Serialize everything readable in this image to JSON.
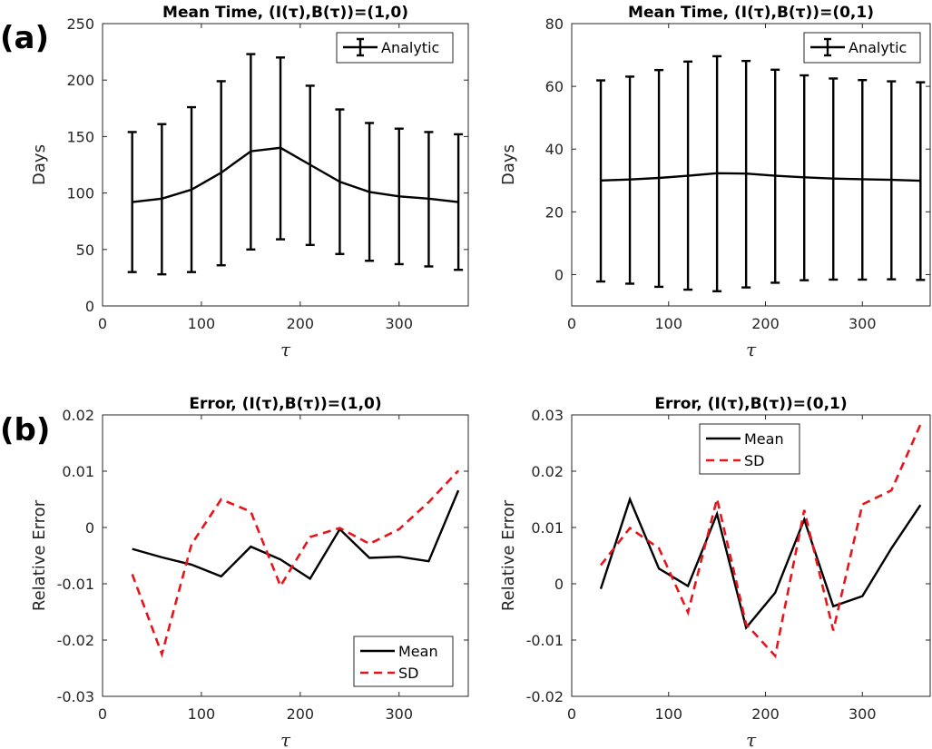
{
  "panel_labels": [
    "(a)",
    "(b)"
  ],
  "chart_data": [
    {
      "type": "line",
      "title": "Mean Time, (I(τ),B(τ))=(1,0)",
      "xlabel": "τ",
      "ylabel": "Days",
      "xlim": [
        0,
        370
      ],
      "ylim": [
        0,
        250
      ],
      "xticks": [
        0,
        100,
        200,
        300
      ],
      "yticks": [
        0,
        50,
        100,
        150,
        200,
        250
      ],
      "yticklabels": [
        "0",
        "50",
        "100",
        "150",
        "200",
        "250"
      ],
      "legend_position": "top-right",
      "series": [
        {
          "name": "Analytic",
          "style": "errorbar",
          "color": "#000000",
          "x": [
            30,
            60,
            90,
            120,
            150,
            180,
            210,
            240,
            270,
            300,
            330,
            360
          ],
          "y": [
            92,
            95,
            103,
            118,
            137,
            140,
            125,
            110,
            101,
            97,
            95,
            92
          ],
          "lower": [
            30,
            28,
            30,
            36,
            50,
            59,
            54,
            46,
            40,
            37,
            35,
            32
          ],
          "upper": [
            154,
            161,
            176,
            199,
            223,
            220,
            195,
            174,
            162,
            157,
            154,
            152
          ]
        }
      ]
    },
    {
      "type": "line",
      "title": "Mean Time, (I(τ),B(τ))=(0,1)",
      "xlabel": "τ",
      "ylabel": "Days",
      "xlim": [
        0,
        370
      ],
      "ylim": [
        -10,
        80
      ],
      "xticks": [
        0,
        100,
        200,
        300
      ],
      "yticks": [
        0,
        20,
        40,
        60,
        80
      ],
      "yticklabels": [
        "0",
        "20",
        "40",
        "60",
        "80"
      ],
      "legend_position": "top-right",
      "series": [
        {
          "name": "Analytic",
          "style": "errorbar",
          "color": "#000000",
          "x": [
            30,
            60,
            90,
            120,
            150,
            180,
            210,
            240,
            270,
            300,
            330,
            360
          ],
          "y": [
            30,
            30.3,
            30.8,
            31.5,
            32.3,
            32.2,
            31.5,
            31,
            30.6,
            30.4,
            30.2,
            29.9
          ],
          "lower": [
            -2.2,
            -2.9,
            -3.9,
            -4.8,
            -5.3,
            -4.1,
            -2.6,
            -1.8,
            -1.6,
            -1.6,
            -1.5,
            -1.7
          ],
          "upper": [
            61.9,
            63.1,
            65.2,
            67.9,
            69.6,
            68.1,
            65.3,
            63.5,
            62.5,
            62,
            61.6,
            61.3
          ]
        }
      ]
    },
    {
      "type": "line",
      "title": "Error, (I(τ),B(τ))=(1,0)",
      "xlabel": "τ",
      "ylabel": "Relative Error",
      "xlim": [
        0,
        370
      ],
      "ylim": [
        -0.03,
        0.02
      ],
      "xticks": [
        0,
        100,
        200,
        300
      ],
      "yticks": [
        -0.03,
        -0.02,
        -0.01,
        0,
        0.01,
        0.02
      ],
      "yticklabels": [
        "-0.03",
        "-0.02",
        "-0.01",
        "0",
        "0.01",
        "0.02"
      ],
      "legend_position": "bottom-right",
      "series": [
        {
          "name": "Mean",
          "style": "solid",
          "color": "#000000",
          "x": [
            30,
            60,
            90,
            120,
            150,
            180,
            210,
            240,
            270,
            300,
            330,
            360
          ],
          "y": [
            -0.0038,
            -0.0053,
            -0.0066,
            -0.0087,
            -0.0034,
            -0.0057,
            -0.0091,
            -0.0003,
            -0.0054,
            -0.0052,
            -0.006,
            0.0066
          ]
        },
        {
          "name": "SD",
          "style": "dashed",
          "color": "#e8141b",
          "x": [
            30,
            60,
            90,
            120,
            150,
            180,
            210,
            240,
            270,
            300,
            330,
            360
          ],
          "y": [
            -0.0083,
            -0.0225,
            -0.003,
            0.005,
            0.0028,
            -0.0104,
            -0.0017,
            -0.0001,
            -0.0029,
            -0.0003,
            0.0045,
            0.0101
          ]
        }
      ]
    },
    {
      "type": "line",
      "title": "Error, (I(τ),B(τ))=(0,1)",
      "xlabel": "τ",
      "ylabel": "Relative Error",
      "xlim": [
        0,
        370
      ],
      "ylim": [
        -0.02,
        0.03
      ],
      "xticks": [
        0,
        100,
        200,
        300
      ],
      "yticks": [
        -0.02,
        -0.01,
        0,
        0.01,
        0.02,
        0.03
      ],
      "yticklabels": [
        "-0.02",
        "-0.01",
        "0",
        "0.01",
        "0.02",
        "0.03"
      ],
      "legend_position": "top-center",
      "series": [
        {
          "name": "Mean",
          "style": "solid",
          "color": "#000000",
          "x": [
            30,
            60,
            90,
            120,
            150,
            180,
            210,
            240,
            270,
            300,
            330,
            360
          ],
          "y": [
            -0.0009,
            0.015,
            0.0027,
            -0.0004,
            0.0124,
            -0.0078,
            -0.0016,
            0.0114,
            -0.004,
            -0.0022,
            0.0063,
            0.014
          ]
        },
        {
          "name": "SD",
          "style": "dashed",
          "color": "#e8141b",
          "x": [
            30,
            60,
            90,
            120,
            150,
            180,
            210,
            240,
            270,
            300,
            330,
            360
          ],
          "y": [
            0.0033,
            0.0099,
            0.0063,
            -0.0051,
            0.0151,
            -0.0072,
            -0.0128,
            0.0131,
            -0.0083,
            0.0141,
            0.0166,
            0.0283
          ]
        }
      ]
    }
  ]
}
